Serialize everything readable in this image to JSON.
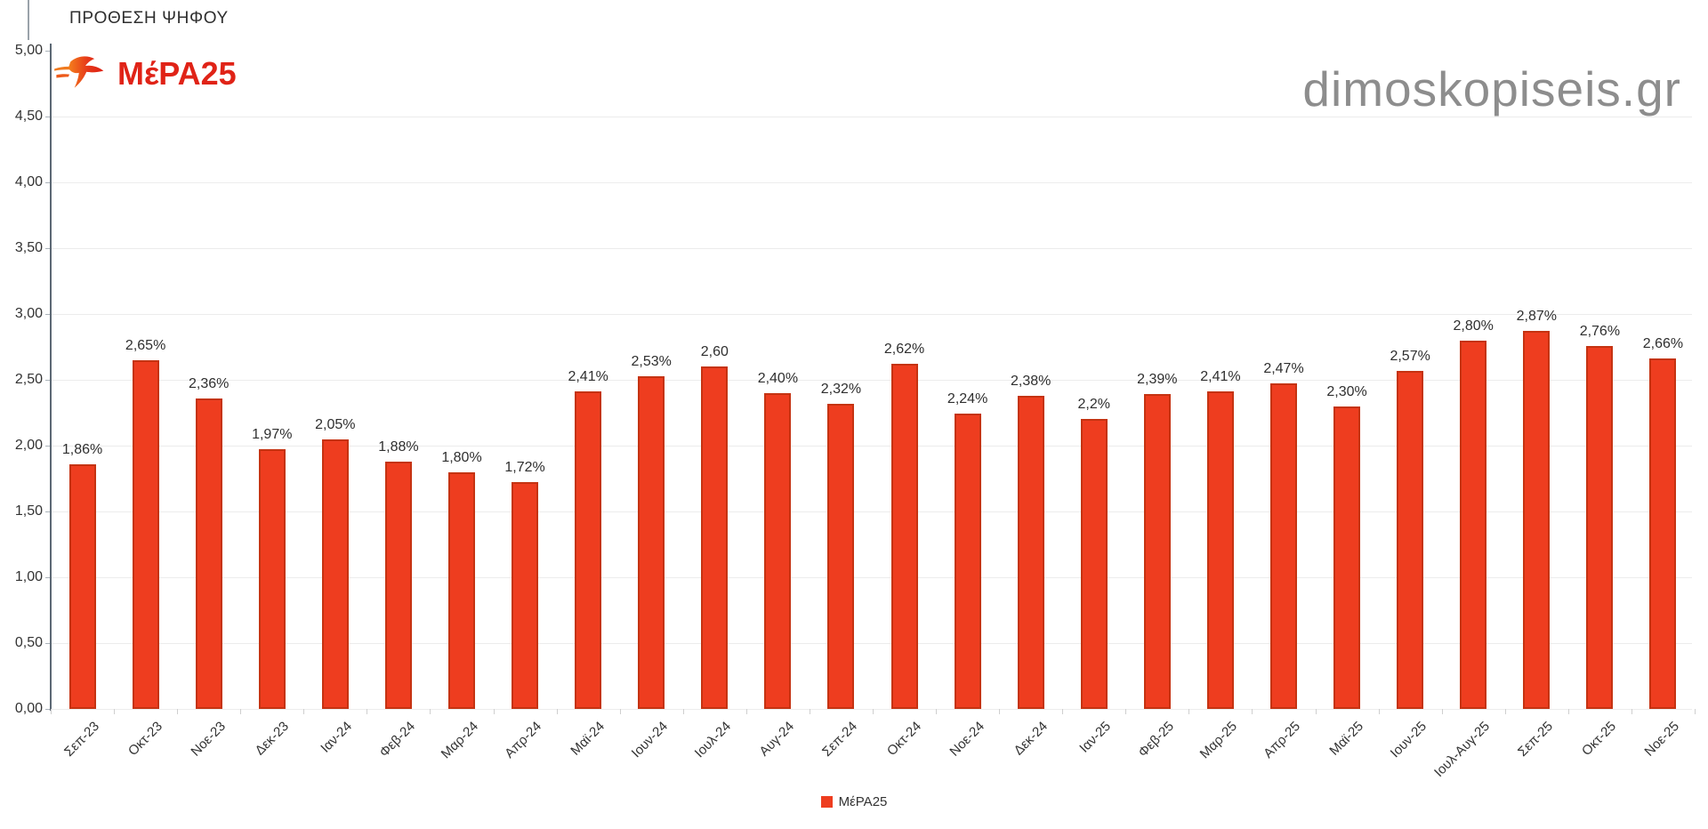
{
  "header": {
    "title": "ΠΡΟΘΕΣΗ ΨΗΦΟΥ",
    "logo_text": "ΜέΡΑ25",
    "watermark": "dimoskopiseis.gr"
  },
  "legend": {
    "label": "ΜέΡΑ25"
  },
  "colors": {
    "bar_fill": "#ee3d1f",
    "bar_border": "#c53312",
    "logo_red": "#e02317",
    "axis_line": "#5c6874",
    "gridline": "#ececec",
    "text": "#333333",
    "watermark_gray": "#8d8d8d"
  },
  "chart_data": {
    "type": "bar",
    "title": "ΠΡΟΘΕΣΗ ΨΗΦΟΥ",
    "series_name": "ΜέΡΑ25",
    "categories": [
      "Σεπ-23",
      "Οκτ-23",
      "Νοε-23",
      "Δεκ-23",
      "Ιαν-24",
      "Φεβ-24",
      "Μαρ-24",
      "Απρ-24",
      "Μαϊ-24",
      "Ιουν-24",
      "Ιουλ-24",
      "Αυγ-24",
      "Σεπ-24",
      "Οκτ-24",
      "Νοε-24",
      "Δεκ-24",
      "Ιαν-25",
      "Φεβ-25",
      "Μαρ-25",
      "Απρ-25",
      "Μαϊ-25",
      "Ιουν-25",
      "Ιουλ-Αυγ-25",
      "Σεπ-25",
      "Οκτ-25",
      "Νοε-25"
    ],
    "values": [
      1.86,
      2.65,
      2.36,
      1.97,
      2.05,
      1.88,
      1.8,
      1.72,
      2.41,
      2.53,
      2.6,
      2.4,
      2.32,
      2.62,
      2.24,
      2.38,
      2.2,
      2.39,
      2.41,
      2.47,
      2.3,
      2.57,
      2.8,
      2.87,
      2.76,
      2.66
    ],
    "value_labels": [
      "1,86%",
      "2,65%",
      "2,36%",
      "1,97%",
      "2,05%",
      "1,88%",
      "1,80%",
      "1,72%",
      "2,41%",
      "2,53%",
      "2,60",
      "2,40%",
      "2,32%",
      "2,62%",
      "2,24%",
      "2,38%",
      "2,2%",
      "2,39%",
      "2,41%",
      "2,47%",
      "2,30%",
      "2,57%",
      "2,80%",
      "2,87%",
      "2,76%",
      "2,66%"
    ],
    "xlabel": "",
    "ylabel": "",
    "ylim": [
      0,
      5
    ],
    "ytick_step": 0.5,
    "ytick_labels_top_to_bottom": [
      "5,00",
      "4,50",
      "4,00",
      "3,50",
      "3,00",
      "2,50",
      "2,00",
      "1,50",
      "1,00",
      "0,50",
      "0,00"
    ],
    "grid": true,
    "legend_position": "bottom"
  }
}
